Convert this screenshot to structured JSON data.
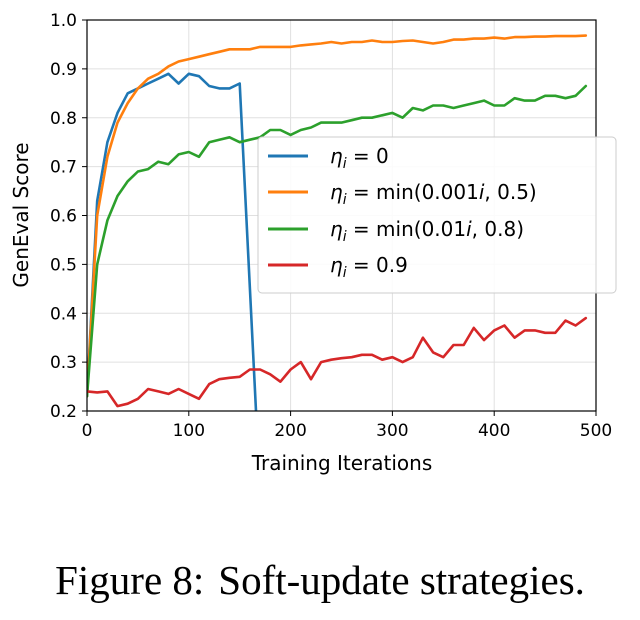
{
  "chart_data": {
    "type": "line",
    "xlabel": "Training Iterations",
    "ylabel": "GenEval Score",
    "xlim": [
      0,
      500
    ],
    "ylim": [
      0.2,
      1.0
    ],
    "x_ticks": [
      "0",
      "100",
      "200",
      "300",
      "400",
      "500"
    ],
    "y_ticks": [
      "0.2",
      "0.3",
      "0.4",
      "0.5",
      "0.6",
      "0.7",
      "0.8",
      "0.9",
      "1.0"
    ],
    "grid": true,
    "legend_position": "center-right",
    "series": [
      {
        "name": "η_i = 0",
        "color": "#1f77b4",
        "x": [
          0,
          10,
          20,
          30,
          40,
          50,
          60,
          70,
          80,
          90,
          100,
          110,
          120,
          130,
          140,
          150,
          166
        ],
        "y": [
          0.23,
          0.63,
          0.75,
          0.81,
          0.85,
          0.86,
          0.87,
          0.88,
          0.89,
          0.87,
          0.89,
          0.885,
          0.865,
          0.86,
          0.86,
          0.87,
          0.2
        ]
      },
      {
        "name": "η_i = min(0.001i, 0.5)",
        "color": "#ff7f0e",
        "x": [
          0,
          10,
          20,
          30,
          40,
          50,
          60,
          70,
          80,
          90,
          100,
          110,
          120,
          130,
          140,
          150,
          160,
          170,
          180,
          190,
          200,
          210,
          220,
          230,
          240,
          250,
          260,
          270,
          280,
          290,
          300,
          310,
          320,
          330,
          340,
          350,
          360,
          370,
          380,
          390,
          400,
          410,
          420,
          430,
          440,
          450,
          460,
          470,
          480,
          490
        ],
        "y": [
          0.23,
          0.6,
          0.72,
          0.79,
          0.83,
          0.86,
          0.88,
          0.89,
          0.905,
          0.915,
          0.92,
          0.925,
          0.93,
          0.935,
          0.94,
          0.94,
          0.94,
          0.945,
          0.945,
          0.945,
          0.945,
          0.948,
          0.95,
          0.952,
          0.955,
          0.952,
          0.955,
          0.955,
          0.958,
          0.955,
          0.955,
          0.957,
          0.958,
          0.955,
          0.952,
          0.955,
          0.96,
          0.96,
          0.962,
          0.962,
          0.964,
          0.962,
          0.965,
          0.965,
          0.966,
          0.966,
          0.967,
          0.967,
          0.967,
          0.968
        ]
      },
      {
        "name": "η_i = min(0.01i, 0.8)",
        "color": "#2ca02c",
        "x": [
          0,
          10,
          20,
          30,
          40,
          50,
          60,
          70,
          80,
          90,
          100,
          110,
          120,
          130,
          140,
          150,
          160,
          170,
          180,
          190,
          200,
          210,
          220,
          230,
          240,
          250,
          260,
          270,
          280,
          290,
          300,
          310,
          320,
          330,
          340,
          350,
          360,
          370,
          380,
          390,
          400,
          410,
          420,
          430,
          440,
          450,
          460,
          470,
          480,
          490
        ],
        "y": [
          0.23,
          0.5,
          0.59,
          0.64,
          0.67,
          0.69,
          0.695,
          0.71,
          0.705,
          0.725,
          0.73,
          0.72,
          0.75,
          0.755,
          0.76,
          0.75,
          0.755,
          0.76,
          0.775,
          0.775,
          0.765,
          0.775,
          0.78,
          0.79,
          0.79,
          0.79,
          0.795,
          0.8,
          0.8,
          0.805,
          0.81,
          0.8,
          0.82,
          0.815,
          0.825,
          0.825,
          0.82,
          0.825,
          0.83,
          0.835,
          0.825,
          0.825,
          0.84,
          0.835,
          0.835,
          0.845,
          0.845,
          0.84,
          0.845,
          0.865
        ]
      },
      {
        "name": "η_i = 0.9",
        "color": "#d62728",
        "x": [
          0,
          10,
          20,
          30,
          40,
          50,
          60,
          70,
          80,
          90,
          100,
          110,
          120,
          130,
          140,
          150,
          160,
          170,
          180,
          190,
          200,
          210,
          220,
          230,
          240,
          250,
          260,
          270,
          280,
          290,
          300,
          310,
          320,
          330,
          340,
          350,
          360,
          370,
          380,
          390,
          400,
          410,
          420,
          430,
          440,
          450,
          460,
          470,
          480,
          490
        ],
        "y": [
          0.24,
          0.238,
          0.24,
          0.21,
          0.215,
          0.225,
          0.245,
          0.24,
          0.235,
          0.245,
          0.235,
          0.225,
          0.255,
          0.265,
          0.268,
          0.27,
          0.285,
          0.285,
          0.275,
          0.26,
          0.285,
          0.3,
          0.265,
          0.3,
          0.305,
          0.308,
          0.31,
          0.315,
          0.315,
          0.305,
          0.31,
          0.3,
          0.31,
          0.35,
          0.32,
          0.31,
          0.335,
          0.335,
          0.37,
          0.345,
          0.365,
          0.375,
          0.35,
          0.365,
          0.365,
          0.36,
          0.36,
          0.385,
          0.375,
          0.39
        ]
      }
    ]
  },
  "legend": [
    {
      "symbol": "η",
      "sub": "i",
      "rest": " = 0"
    },
    {
      "symbol": "η",
      "sub": "i",
      "rest": " = min(0.001",
      "ital": "i",
      "tail": ", 0.5)"
    },
    {
      "symbol": "η",
      "sub": "i",
      "rest": " = min(0.01",
      "ital": "i",
      "tail": ", 0.8)"
    },
    {
      "symbol": "η",
      "sub": "i",
      "rest": " = 0.9"
    }
  ],
  "caption": {
    "figure_number": "Figure 8:",
    "text": "Soft-update strategies."
  }
}
